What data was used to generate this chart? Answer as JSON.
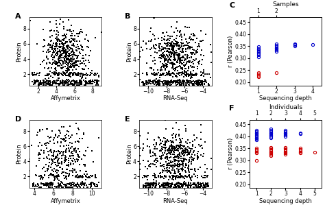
{
  "panel_A": {
    "label": "A",
    "xlabel": "Affymetrix",
    "ylabel": "Protein",
    "xlim": [
      1,
      9
    ],
    "ylim": [
      0.5,
      9.5
    ],
    "xticks": [
      2,
      4,
      6,
      8
    ],
    "yticks": [
      2,
      4,
      6,
      8
    ]
  },
  "panel_B": {
    "label": "B",
    "xlabel": "RNA-Seq",
    "ylabel": "Protein",
    "xlim": [
      -11,
      -3
    ],
    "ylim": [
      0.5,
      9.5
    ],
    "xticks": [
      -10,
      -8,
      -6,
      -4
    ],
    "yticks": [
      2,
      4,
      6,
      8
    ]
  },
  "panel_C": {
    "label": "C",
    "title_top": "Samples",
    "xlabel": "Sequencing depth",
    "ylabel": "r (Pearson)",
    "xlim": [
      0.5,
      4.5
    ],
    "ylim": [
      0.185,
      0.47
    ],
    "xticks_bottom": [
      1,
      2,
      3,
      4
    ],
    "xticks_top": [
      1,
      2
    ],
    "yticks": [
      0.2,
      0.25,
      0.3,
      0.35,
      0.4,
      0.45
    ],
    "blue_data": {
      "1": [
        0.305,
        0.312,
        0.32,
        0.325,
        0.33,
        0.335,
        0.34,
        0.348
      ],
      "2": [
        0.328,
        0.333,
        0.338,
        0.342,
        0.347,
        0.352,
        0.358
      ],
      "3": [
        0.35,
        0.355,
        0.36
      ],
      "4": [
        0.355
      ]
    },
    "red_data": {
      "1": [
        0.222,
        0.228,
        0.233,
        0.238
      ],
      "2": [
        0.24
      ],
      "3": [],
      "4": []
    }
  },
  "panel_D": {
    "label": "D",
    "xlabel": "Affymetrix",
    "ylabel": "Protein",
    "xlim": [
      3.5,
      11
    ],
    "ylim": [
      0.5,
      9.5
    ],
    "xticks": [
      4,
      6,
      8,
      10
    ],
    "yticks": [
      2,
      4,
      6,
      8
    ]
  },
  "panel_E": {
    "label": "E",
    "xlabel": "RNA-Seq",
    "ylabel": "Protein",
    "xlim": [
      -11,
      -3
    ],
    "ylim": [
      0.5,
      9.5
    ],
    "xticks": [
      -10,
      -8,
      -6,
      -4
    ],
    "yticks": [
      2,
      4,
      6,
      8
    ]
  },
  "panel_F": {
    "label": "F",
    "title_top": "Individuals",
    "xlabel": "Sequencing depth",
    "ylabel": "r (Pearson)",
    "xlim": [
      0.5,
      5.5
    ],
    "ylim": [
      0.185,
      0.47
    ],
    "xticks_bottom": [
      1,
      2,
      3,
      4,
      5
    ],
    "xticks_top": [
      1,
      2,
      3,
      4,
      5
    ],
    "yticks": [
      0.2,
      0.25,
      0.3,
      0.35,
      0.4,
      0.45
    ],
    "blue_data": {
      "1": [
        0.385,
        0.39,
        0.395,
        0.4,
        0.405,
        0.41,
        0.415,
        0.42,
        0.425
      ],
      "2": [
        0.395,
        0.4,
        0.405,
        0.41,
        0.415,
        0.42,
        0.425,
        0.43
      ],
      "3": [
        0.4,
        0.405,
        0.41,
        0.415,
        0.42,
        0.425
      ],
      "4": [
        0.41,
        0.415
      ],
      "5": []
    },
    "red_data": {
      "1": [
        0.3,
        0.33,
        0.335,
        0.34,
        0.345,
        0.35
      ],
      "2": [
        0.32,
        0.325,
        0.33,
        0.335,
        0.34,
        0.345,
        0.35,
        0.355
      ],
      "3": [
        0.325,
        0.33,
        0.335,
        0.34,
        0.345,
        0.35,
        0.355
      ],
      "4": [
        0.33,
        0.335,
        0.34,
        0.345,
        0.35
      ],
      "5": [
        0.335
      ]
    }
  },
  "scatter_color": "#000000",
  "scatter_size": 1.5,
  "blue_color": "#0000CC",
  "red_color": "#CC0000",
  "bg_color": "#ffffff",
  "panel_bg": "#ffffff"
}
